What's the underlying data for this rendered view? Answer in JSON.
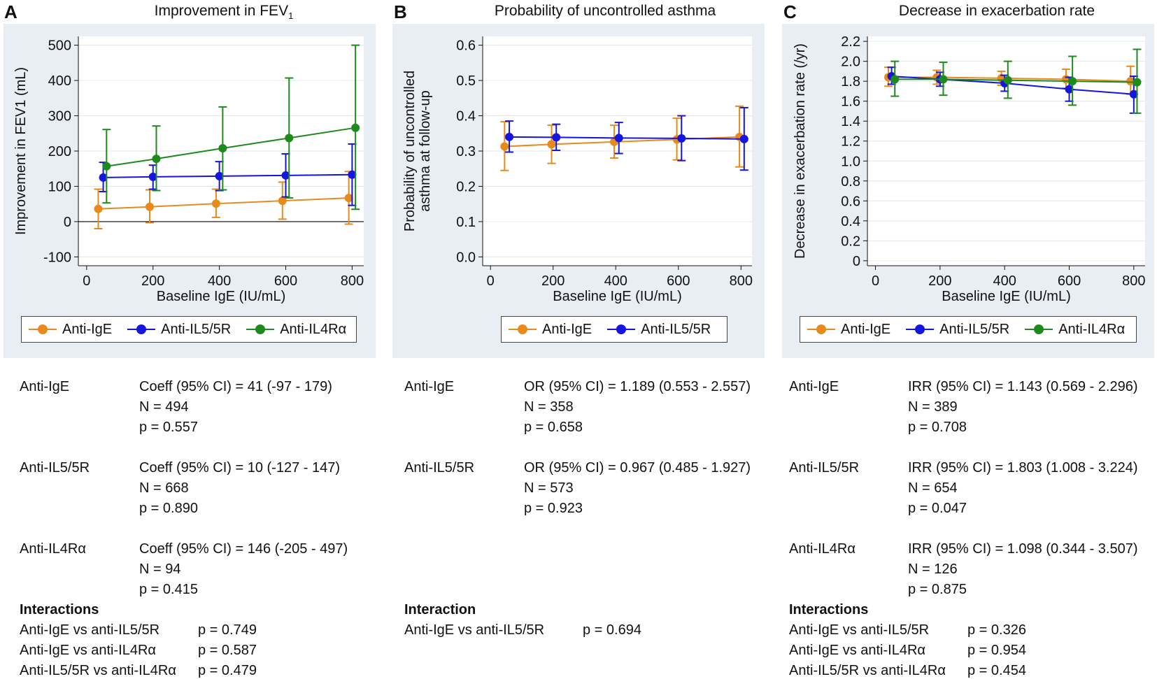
{
  "colors": {
    "igE": "#E8891C",
    "il5": "#1515E0",
    "il4": "#1E8A1E",
    "panel_bg": "#e9eef4"
  },
  "chart_data": [
    {
      "type": "line",
      "letter": "A",
      "title_main": "Improvement in FEV",
      "title_sub": "1",
      "xlabel": "Baseline IgE (IU/mL)",
      "ylabel": "Improvement in FEV1 (mL)",
      "xlim": [
        -25,
        835
      ],
      "ylim": [
        -125,
        525
      ],
      "xticks": [
        0,
        200,
        400,
        600,
        800
      ],
      "yticks": [
        -100,
        0,
        100,
        200,
        300,
        400,
        500
      ],
      "ytick_labels": [
        "-100",
        "0",
        "100",
        "200",
        "300",
        "400",
        "500"
      ],
      "series": [
        {
          "name": "Anti-IgE",
          "color_key": "igE",
          "points": [
            {
              "x": 35,
              "y": 36,
              "lo": -20,
              "hi": 92
            },
            {
              "x": 190,
              "y": 42,
              "lo": -3,
              "hi": 90
            },
            {
              "x": 390,
              "y": 51,
              "lo": 12,
              "hi": 92
            },
            {
              "x": 590,
              "y": 59,
              "lo": 7,
              "hi": 112
            },
            {
              "x": 790,
              "y": 67,
              "lo": -7,
              "hi": 142
            }
          ]
        },
        {
          "name": "Anti-IL5/5R",
          "color_key": "il5",
          "points": [
            {
              "x": 50,
              "y": 125,
              "lo": 85,
              "hi": 168
            },
            {
              "x": 200,
              "y": 127,
              "lo": 92,
              "hi": 160
            },
            {
              "x": 400,
              "y": 129,
              "lo": 88,
              "hi": 170
            },
            {
              "x": 600,
              "y": 131,
              "lo": 70,
              "hi": 192
            },
            {
              "x": 800,
              "y": 133,
              "lo": 46,
              "hi": 220
            }
          ]
        },
        {
          "name": "Anti-IL4Rα",
          "color_key": "il4",
          "points": [
            {
              "x": 60,
              "y": 157,
              "lo": 53,
              "hi": 261
            },
            {
              "x": 210,
              "y": 178,
              "lo": 88,
              "hi": 271
            },
            {
              "x": 410,
              "y": 208,
              "lo": 90,
              "hi": 325
            },
            {
              "x": 610,
              "y": 237,
              "lo": 67,
              "hi": 407
            },
            {
              "x": 810,
              "y": 266,
              "lo": 35,
              "hi": 500
            }
          ]
        }
      ],
      "legend": [
        "Anti-IgE",
        "Anti-IL5/5R",
        "Anti-IL4Rα"
      ],
      "zero_line": true
    },
    {
      "type": "line",
      "letter": "B",
      "title_main": "Probability of uncontrolled asthma",
      "title_sub": "",
      "xlabel": "Baseline IgE (IU/mL)",
      "ylabel": "Probability of uncontrolled",
      "ylabel2": "asthma at follow-up",
      "xlim": [
        -25,
        835
      ],
      "ylim": [
        -0.025,
        0.625
      ],
      "xticks": [
        0,
        200,
        400,
        600,
        800
      ],
      "yticks": [
        0,
        0.1,
        0.2,
        0.3,
        0.4,
        0.5,
        0.6
      ],
      "ytick_labels": [
        "0.0",
        "0.1",
        "0.2",
        "0.3",
        "0.4",
        "0.5",
        "0.6"
      ],
      "series": [
        {
          "name": "Anti-IgE",
          "color_key": "igE",
          "points": [
            {
              "x": 45,
              "y": 0.313,
              "lo": 0.245,
              "hi": 0.383
            },
            {
              "x": 195,
              "y": 0.319,
              "lo": 0.265,
              "hi": 0.373
            },
            {
              "x": 395,
              "y": 0.326,
              "lo": 0.28,
              "hi": 0.373
            },
            {
              "x": 595,
              "y": 0.333,
              "lo": 0.275,
              "hi": 0.393
            },
            {
              "x": 795,
              "y": 0.34,
              "lo": 0.255,
              "hi": 0.427
            }
          ]
        },
        {
          "name": "Anti-IL5/5R",
          "color_key": "il5",
          "points": [
            {
              "x": 60,
              "y": 0.34,
              "lo": 0.297,
              "hi": 0.385
            },
            {
              "x": 210,
              "y": 0.339,
              "lo": 0.302,
              "hi": 0.376
            },
            {
              "x": 410,
              "y": 0.337,
              "lo": 0.293,
              "hi": 0.381
            },
            {
              "x": 610,
              "y": 0.336,
              "lo": 0.273,
              "hi": 0.4
            },
            {
              "x": 810,
              "y": 0.334,
              "lo": 0.246,
              "hi": 0.423
            }
          ]
        }
      ],
      "legend": [
        "Anti-IgE",
        "Anti-IL5/5R"
      ],
      "zero_line": false
    },
    {
      "type": "line",
      "letter": "C",
      "title_main": "Decrease in exacerbation rate",
      "title_sub": "",
      "xlabel": "Baseline IgE (IU/mL)",
      "ylabel": "Decrease in exacerbation rate (/yr)",
      "xlim": [
        -25,
        835
      ],
      "ylim": [
        -0.05,
        2.25
      ],
      "xticks": [
        0,
        200,
        400,
        600,
        800
      ],
      "yticks": [
        0,
        0.2,
        0.4,
        0.6,
        0.8,
        1.0,
        1.2,
        1.4,
        1.6,
        1.8,
        2.0,
        2.2
      ],
      "ytick_labels": [
        "0",
        "0.2",
        "0.4",
        "0.6",
        "0.8",
        "1.0",
        "1.2",
        "1.4",
        "1.6",
        "1.8",
        "2.0",
        "2.2"
      ],
      "series": [
        {
          "name": "Anti-IgE",
          "color_key": "igE",
          "points": [
            {
              "x": 40,
              "y": 1.84,
              "lo": 1.75,
              "hi": 1.94
            },
            {
              "x": 190,
              "y": 1.84,
              "lo": 1.77,
              "hi": 1.91
            },
            {
              "x": 390,
              "y": 1.83,
              "lo": 1.76,
              "hi": 1.9
            },
            {
              "x": 590,
              "y": 1.82,
              "lo": 1.73,
              "hi": 1.92
            },
            {
              "x": 790,
              "y": 1.8,
              "lo": 1.67,
              "hi": 1.95
            }
          ]
        },
        {
          "name": "Anti-IL5/5R",
          "color_key": "il5",
          "points": [
            {
              "x": 50,
              "y": 1.85,
              "lo": 1.77,
              "hi": 1.94
            },
            {
              "x": 200,
              "y": 1.82,
              "lo": 1.75,
              "hi": 1.89
            },
            {
              "x": 400,
              "y": 1.78,
              "lo": 1.7,
              "hi": 1.86
            },
            {
              "x": 600,
              "y": 1.72,
              "lo": 1.6,
              "hi": 1.84
            },
            {
              "x": 800,
              "y": 1.67,
              "lo": 1.48,
              "hi": 1.85
            }
          ]
        },
        {
          "name": "Anti-IL4Rα",
          "color_key": "il4",
          "points": [
            {
              "x": 60,
              "y": 1.82,
              "lo": 1.65,
              "hi": 2.0
            },
            {
              "x": 210,
              "y": 1.82,
              "lo": 1.66,
              "hi": 1.99
            },
            {
              "x": 410,
              "y": 1.81,
              "lo": 1.63,
              "hi": 2.0
            },
            {
              "x": 610,
              "y": 1.8,
              "lo": 1.56,
              "hi": 2.05
            },
            {
              "x": 810,
              "y": 1.79,
              "lo": 1.48,
              "hi": 2.12
            }
          ]
        }
      ],
      "legend": [
        "Anti-IgE",
        "Anti-IL5/5R",
        "Anti-IL4Rα"
      ],
      "zero_line": false
    }
  ],
  "stats": {
    "A": {
      "groups": [
        {
          "name": "Anti-IgE",
          "est": "Coeff (95% CI) = 41 (-97 - 179)",
          "n": "N =  494",
          "p": "p = 0.557"
        },
        {
          "name": "Anti-IL5/5R",
          "est": "Coeff (95% CI) = 10 (-127 - 147)",
          "n": "N =  668",
          "p": "p = 0.890"
        },
        {
          "name": "Anti-IL4Rα",
          "est": "Coeff (95% CI) = 146 (-205 - 497)",
          "n": "N =  94",
          "p": "p = 0.415"
        }
      ],
      "interactions_heading": "Interactions",
      "interactions": [
        {
          "label": "Anti-IgE vs anti-IL5/5R",
          "p": "p = 0.749"
        },
        {
          "label": "Anti-IgE vs anti-IL4Rα",
          "p": "p = 0.587"
        },
        {
          "label": "Anti-IL5/5R vs anti-IL4Rα",
          "p": "p = 0.479"
        }
      ]
    },
    "B": {
      "groups": [
        {
          "name": "Anti-IgE",
          "est": "OR (95% CI) = 1.189 (0.553 - 2.557)",
          "n": "N = 358",
          "p": "p = 0.658"
        },
        {
          "name": "Anti-IL5/5R",
          "est": "OR (95% CI) = 0.967 (0.485 - 1.927)",
          "n": "N = 573",
          "p": "p = 0.923"
        }
      ],
      "interactions_heading": "Interaction",
      "interactions": [
        {
          "label": "Anti-IgE vs anti-IL5/5R",
          "p": "p = 0.694"
        }
      ]
    },
    "C": {
      "groups": [
        {
          "name": "Anti-IgE",
          "est": "IRR (95% CI) = 1.143 (0.569 - 2.296)",
          "n": "N = 389",
          "p": "p = 0.708"
        },
        {
          "name": "Anti-IL5/5R",
          "est": "IRR (95% CI) = 1.803 (1.008 - 3.224)",
          "n": "N = 654",
          "p": "p = 0.047"
        },
        {
          "name": "Anti-IL4Rα",
          "est": "IRR (95% CI) = 1.098 (0.344 - 3.507)",
          "n": "N = 126",
          "p": "p = 0.875"
        }
      ],
      "interactions_heading": "Interactions",
      "interactions": [
        {
          "label": "Anti-IgE vs anti-IL5/5R",
          "p": "p = 0.326"
        },
        {
          "label": "Anti-IgE vs anti-IL4Rα",
          "p": "p = 0.954"
        },
        {
          "label": "Anti-IL5/5R vs anti-IL4Rα",
          "p": "p = 0.454"
        }
      ]
    }
  }
}
